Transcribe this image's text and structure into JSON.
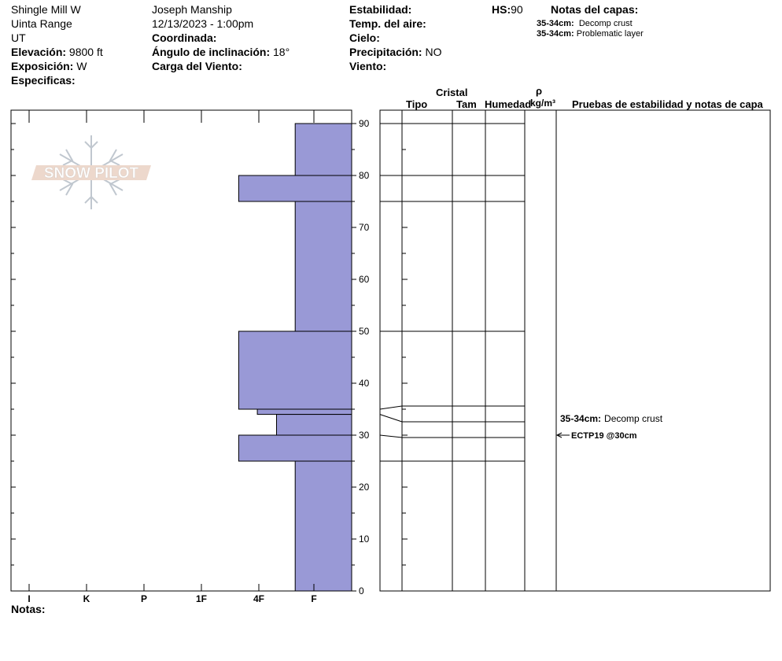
{
  "header": {
    "location": "Shingle Mill W",
    "range": "Uinta Range",
    "state": "UT",
    "elevation_label": "Elevación:",
    "elevation_value": "9800 ft",
    "aspect_label": "Exposición:",
    "aspect_value": "W",
    "specifics_label": "Especificas:",
    "observer": "Joseph Manship",
    "datetime": "12/13/2023 - 1:00pm",
    "coord_label": "Coordinada:",
    "slope_label": "Ángulo de inclinación:",
    "slope_value": "18°",
    "wind_load_label": "Carga del Viento:",
    "stability_label": "Estabilidad:",
    "air_temp_label": "Temp. del aire:",
    "sky_label": "Cielo:",
    "precip_label": "Precipitación:",
    "precip_value": "NO",
    "wind_label": "Viento:",
    "hs_label": "HS:",
    "hs_value": "90",
    "layer_notes_title": "Notas del capas:",
    "layer_notes": [
      {
        "depth": "35-34cm:",
        "text": "Decomp crust"
      },
      {
        "depth": "35-34cm:",
        "text": "Problematic layer"
      }
    ]
  },
  "notes_label": "Notas:",
  "logo_text": "SNOW PILOT",
  "table": {
    "crystal_label": "Cristal",
    "type_label": "Tipo",
    "size_label": "Tam",
    "moisture_label": "Humedad",
    "density_symbol": "ρ",
    "density_unit": "kg/m³",
    "tests_label": "Pruebas de estabilidad y notas de capa",
    "layer_note_depth": "35-34cm:",
    "layer_note_text": "Decomp crust",
    "test_result": "ECTP19 @30cm"
  },
  "colors": {
    "hardness_fill": "#9999d6"
  },
  "chart_data": {
    "type": "bar",
    "title": "",
    "x_categories": [
      "I",
      "K",
      "P",
      "1F",
      "4F",
      "F"
    ],
    "ylabel": "",
    "ylim": [
      0,
      90
    ],
    "y_ticks": [
      0,
      10,
      20,
      30,
      40,
      50,
      60,
      70,
      80,
      90
    ],
    "hardness_scale_note": "hardness index: F=1, 4F=2, 1F=3, P=4, K=5, I=6",
    "layers": [
      {
        "top": 90,
        "bottom": 80,
        "hardness": 1
      },
      {
        "top": 80,
        "bottom": 75,
        "hardness": 2
      },
      {
        "top": 75,
        "bottom": 50,
        "hardness": 1
      },
      {
        "top": 50,
        "bottom": 35,
        "hardness": 2
      },
      {
        "top": 35,
        "bottom": 34,
        "hardness": 1.67
      },
      {
        "top": 34,
        "bottom": 30,
        "hardness": 1.33
      },
      {
        "top": 30,
        "bottom": 25,
        "hardness": 2
      },
      {
        "top": 25,
        "bottom": 0,
        "hardness": 1
      }
    ],
    "grid": false,
    "legend": "none"
  }
}
